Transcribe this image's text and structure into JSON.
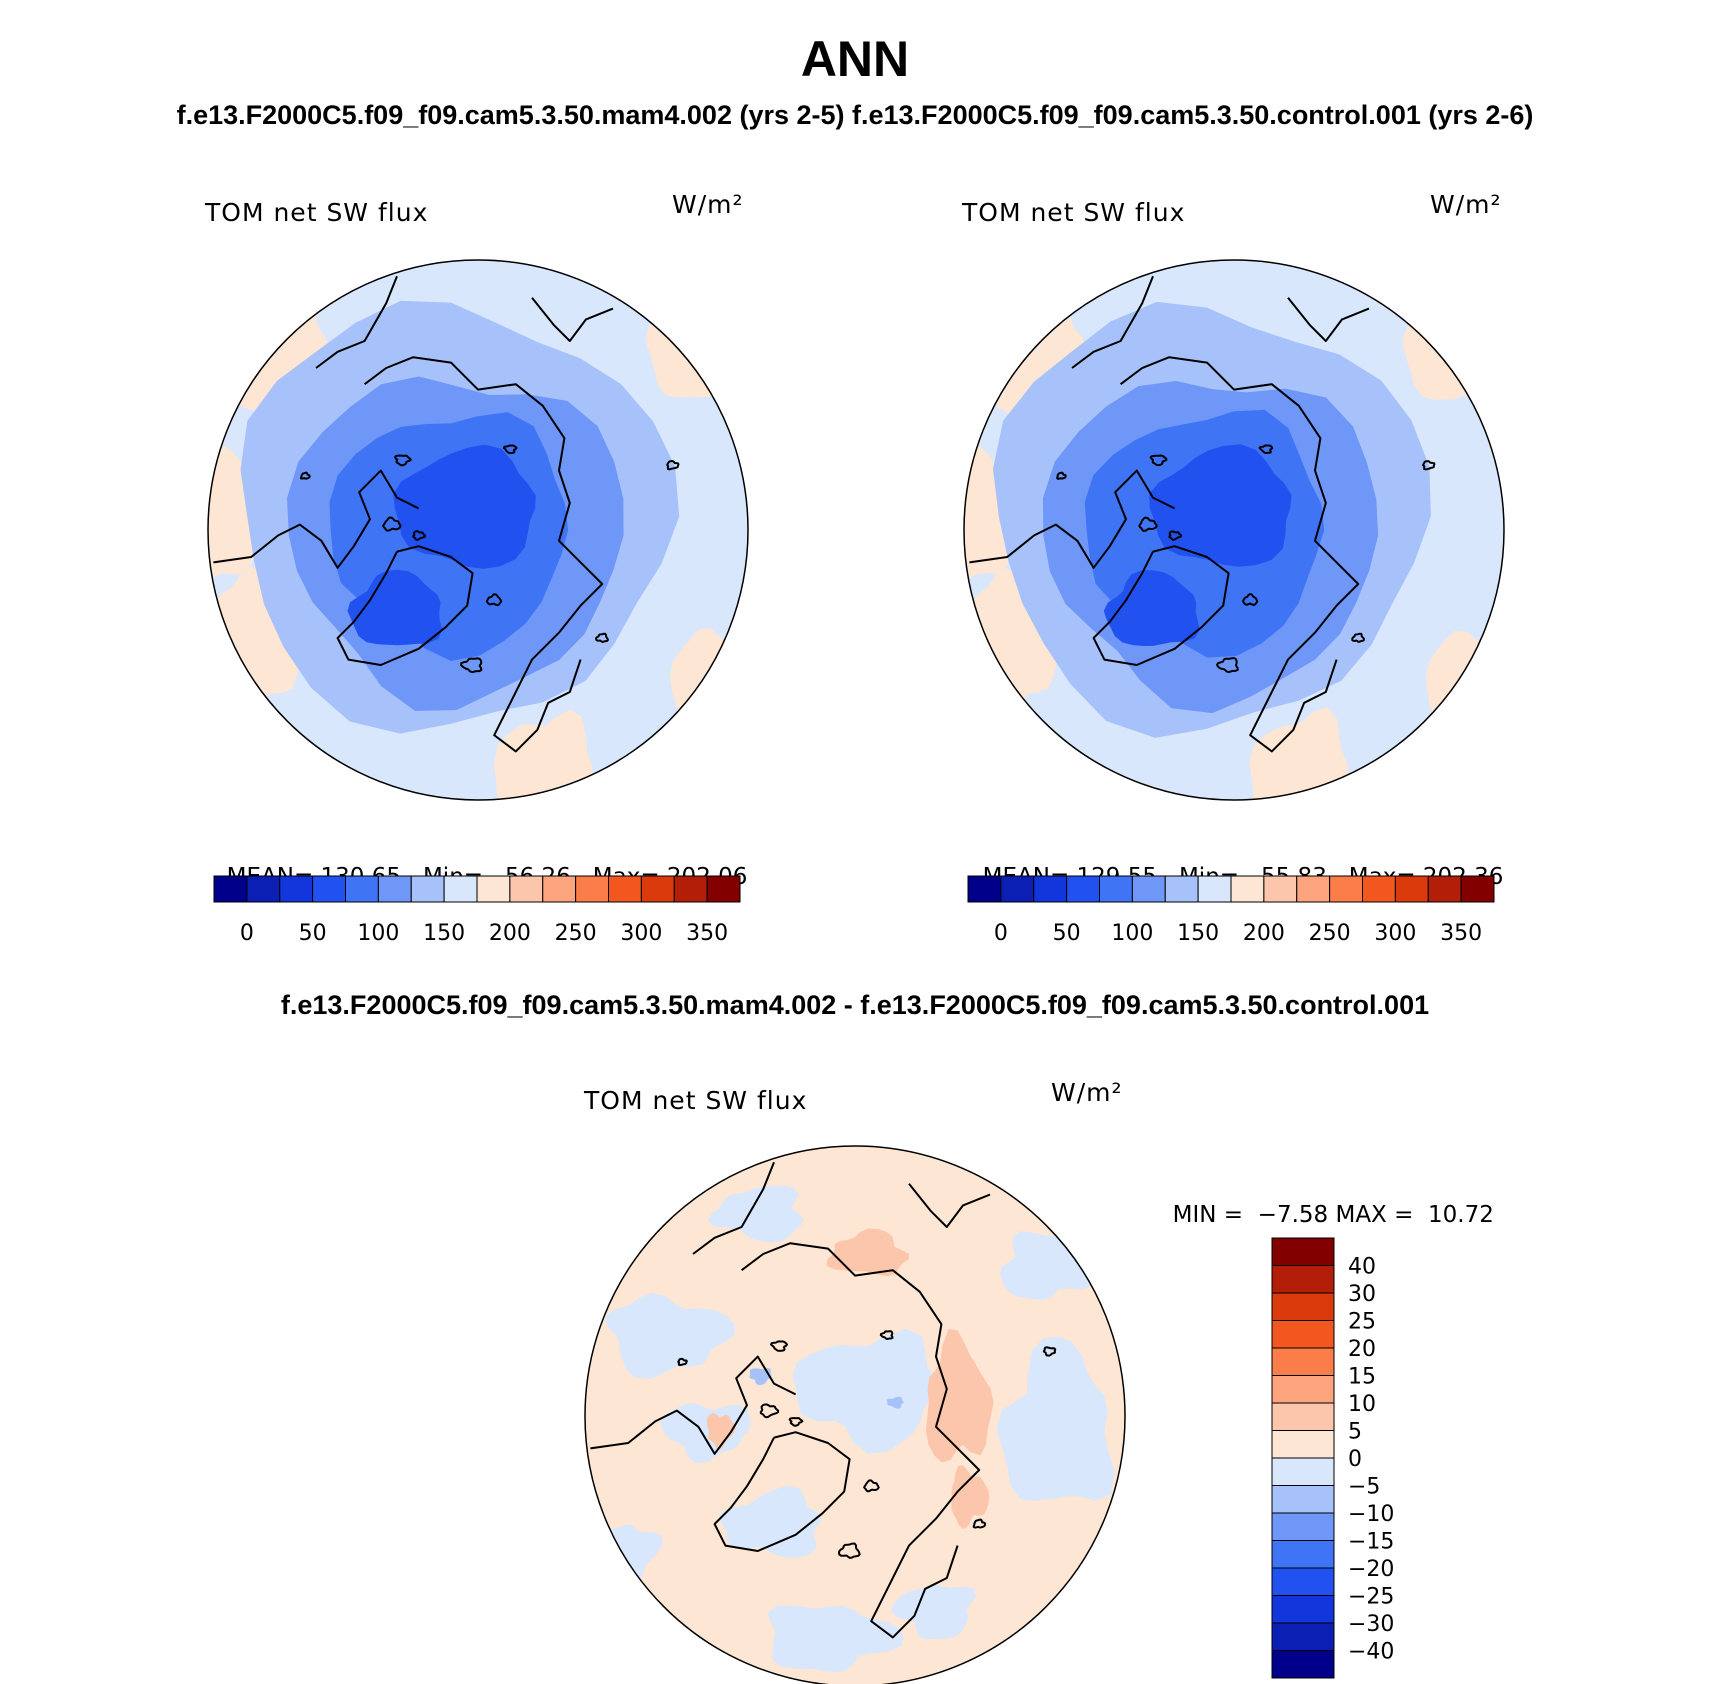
{
  "page": {
    "season": "ANN",
    "subtitle": "f.e13.F2000C5.f09_f09.cam5.3.50.mam4.002 (yrs 2-5) f.e13.F2000C5.f09_f09.cam5.3.50.control.001 (yrs 2-6)",
    "diff_title": "f.e13.F2000C5.f09_f09.cam5.3.50.mam4.002 - f.e13.F2000C5.f09_f09.cam5.3.50.control.001"
  },
  "panels": {
    "left": {
      "variable": "TOM net SW flux",
      "units": "W/m²",
      "mean_label": "MEAN=",
      "mean": "130.65",
      "min_label": "Min=",
      "min": "56.26",
      "max_label": "Max=",
      "max": "202.06"
    },
    "right": {
      "variable": "TOM net SW flux",
      "units": "W/m²",
      "mean_label": "MEAN=",
      "mean": "129.55",
      "min_label": "Min=",
      "min": "55.83",
      "max_label": "Max=",
      "max": "202.36"
    },
    "diff": {
      "variable": "TOM net SW flux",
      "units": "W/m²",
      "min_label": "MIN =",
      "min": "−7.58",
      "max_label": "MAX =",
      "max": "10.72"
    }
  },
  "colorbars": {
    "abs": {
      "labels": [
        "0",
        "50",
        "100",
        "150",
        "200",
        "250",
        "300",
        "350"
      ],
      "colors": [
        "#00008a",
        "#0b1fb5",
        "#1236db",
        "#2152f0",
        "#3f74f5",
        "#6e97f7",
        "#a7c2fa",
        "#d8e7fc",
        "#fde6d4",
        "#fcc6ac",
        "#fca47d",
        "#fb7d4a",
        "#f2571f",
        "#db3a0d",
        "#b31e08",
        "#820000"
      ]
    },
    "diff": {
      "labels": [
        "40",
        "30",
        "25",
        "20",
        "15",
        "10",
        "5",
        "0",
        "−5",
        "−10",
        "−15",
        "−20",
        "−25",
        "−30",
        "−40"
      ],
      "colors": [
        "#820000",
        "#b31e08",
        "#db3a0d",
        "#f2571f",
        "#fb7d4a",
        "#fca47d",
        "#fcc6ac",
        "#fde6d4",
        "#d8e7fc",
        "#a7c2fa",
        "#6e97f7",
        "#3f74f5",
        "#2152f0",
        "#1236db",
        "#0b1fb5",
        "#00008a"
      ]
    }
  },
  "map_colors": {
    "ocean_outer": "#d8e7fc",
    "ring_1": "#a7c2fa",
    "ring_2": "#6e97f7",
    "ring_3": "#3f74f5",
    "core": "#2152f0",
    "warm_edge": "#fde6d4",
    "diff_warm": "#fde6d4",
    "diff_warmer": "#fcc6ac",
    "diff_cool": "#d8e7fc",
    "diff_cooler": "#a7c2fa"
  }
}
